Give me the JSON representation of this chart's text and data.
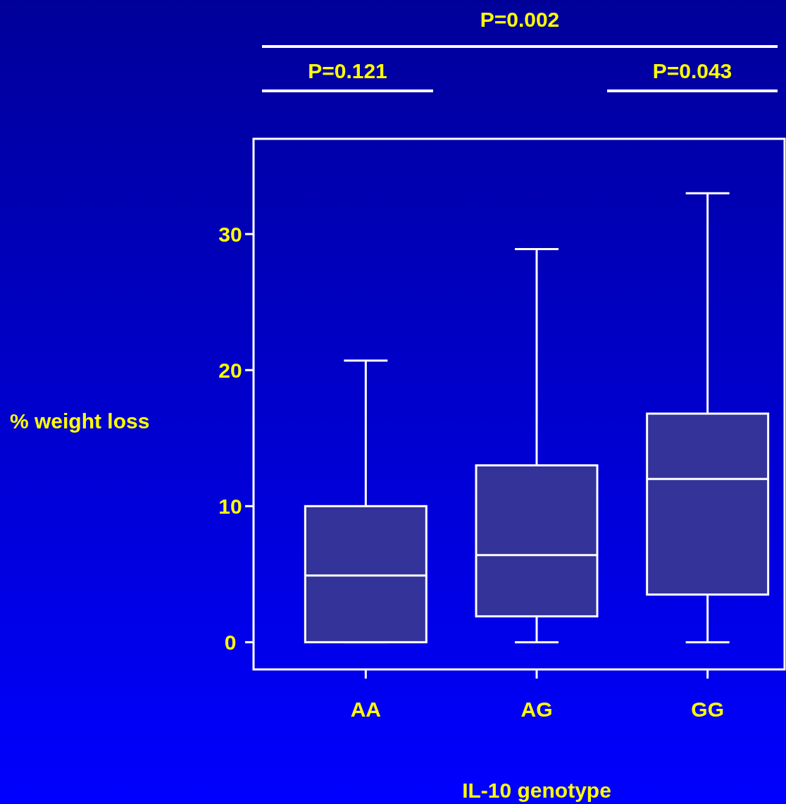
{
  "chart_data": {
    "type": "box",
    "xlabel": "IL-10 genotype",
    "ylabel": "% weight loss",
    "categories": [
      "AA",
      "AG",
      "GG"
    ],
    "boxes": [
      {
        "low": 0,
        "q1": 0,
        "median": 4.9,
        "q3": 10,
        "high": 20.7
      },
      {
        "low": 0,
        "q1": 1.9,
        "median": 6.4,
        "q3": 13,
        "high": 28.9
      },
      {
        "low": 0,
        "q1": 3.5,
        "median": 12,
        "q3": 16.8,
        "high": 33
      }
    ],
    "color": "#333399",
    "ylim": [
      -2,
      37
    ],
    "yticks": [
      0,
      10,
      20,
      30
    ],
    "grid": false,
    "annotations": [
      "P=0.002",
      "P=0.121",
      "P=0.043"
    ]
  }
}
